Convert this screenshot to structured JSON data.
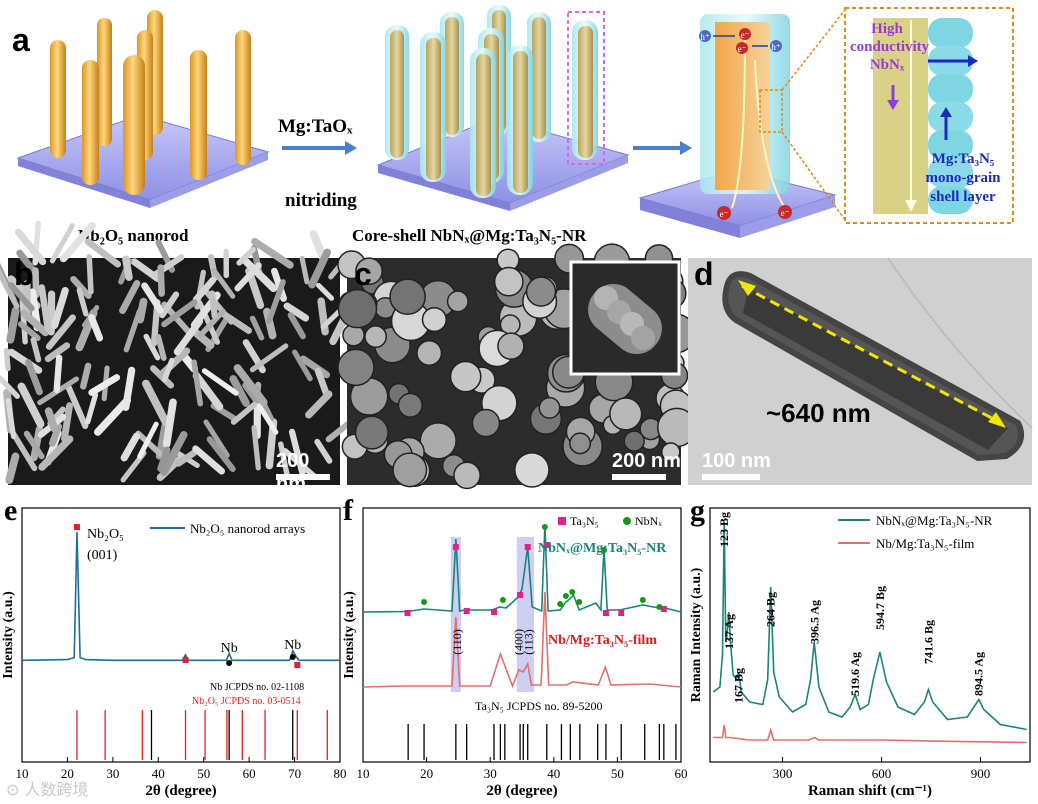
{
  "panel_a": {
    "label": "a",
    "step1_caption": "Nb₂O₅ nanorod",
    "reagent": "Mg:TaOₓ",
    "process": "nitriding",
    "step2_caption": "Core-shell NbNₓ@Mg:Ta₃N₅-NR",
    "zoom_core": "High conductivity NbNₓ",
    "zoom_shell": "Mg:Ta₃N₅ mono-grain shell layer",
    "hole": "h⁺",
    "electron": "e⁻"
  },
  "panel_b": {
    "label": "b",
    "scale": "200 nm"
  },
  "panel_c": {
    "label": "c",
    "scale": "200 nm"
  },
  "panel_d": {
    "label": "d",
    "scale": "100 nm",
    "length": "~640 nm"
  },
  "chart_data": [
    {
      "panel": "e",
      "type": "line",
      "xlabel": "2θ (degree)",
      "ylabel": "Intensity (a.u.)",
      "xlim": [
        10,
        80
      ],
      "xticks": [
        "10",
        "20",
        "30",
        "40",
        "50",
        "60",
        "70",
        "80"
      ],
      "series": [
        {
          "name": "Nb₂O₅ nanorod arrays",
          "color": "#1f6e98",
          "x": [
            10,
            20,
            21.5,
            22.1,
            22.8,
            24,
            30,
            40,
            45.3,
            46,
            46.6,
            50,
            55,
            55.6,
            56.2,
            60,
            68.9,
            69.6,
            70.3,
            71,
            80
          ],
          "y": [
            0.05,
            0.055,
            0.07,
            1.0,
            0.07,
            0.055,
            0.05,
            0.05,
            0.05,
            0.09,
            0.05,
            0.05,
            0.05,
            0.1,
            0.05,
            0.05,
            0.05,
            0.12,
            0.08,
            0.05,
            0.05
          ]
        }
      ],
      "annotations": [
        "Nb₂O₅",
        "(001)",
        "Nb",
        "Nb"
      ],
      "reference_labels": [
        "Nb JCPDS no. 02-1108",
        "Nb₂O₅ JCPDS no. 03-0514"
      ],
      "ref_nb": [
        38.5,
        55.6,
        69.6
      ],
      "ref_nb2o5": [
        22.1,
        28.3,
        36.5,
        46,
        50.3,
        55.1,
        58.5,
        63.5,
        70.6,
        77.2
      ]
    },
    {
      "panel": "f",
      "type": "line",
      "xlabel": "2θ (degree)",
      "ylabel": "Intensity (a.u.)",
      "xlim": [
        10,
        60
      ],
      "xticks": [
        "10",
        "20",
        "30",
        "40",
        "50",
        "60"
      ],
      "legend": [
        "Ta₃N₅",
        "NbNₓ"
      ],
      "series": [
        {
          "name": "NbNₓ@Mg:Ta₃N₅-NR",
          "color": "#1a8479",
          "x": [
            10,
            17,
            19.6,
            24,
            24.6,
            25.2,
            26,
            30.3,
            31.5,
            32.5,
            34.4,
            35,
            35.9,
            36.6,
            38.1,
            38.6,
            39.1,
            41,
            41.9,
            42.5,
            43.1,
            44,
            46.6,
            47.4,
            47.9,
            48.4,
            50.4,
            54,
            56.5,
            57.5,
            60
          ],
          "y": [
            0.05,
            0.055,
            0.08,
            0.06,
            0.78,
            0.06,
            0.07,
            0.07,
            0.1,
            0.09,
            0.2,
            0.28,
            0.7,
            0.1,
            0.06,
            0.92,
            0.06,
            0.07,
            0.15,
            0.18,
            0.22,
            0.07,
            0.14,
            0.07,
            0.68,
            0.07,
            0.07,
            0.12,
            0.09,
            0.09,
            0.05
          ]
        },
        {
          "name": "Nb/Mg:Ta₃N₅-film",
          "color": "#e07070",
          "x": [
            10,
            17,
            20,
            24,
            24.6,
            25.2,
            30,
            31.6,
            32.2,
            33.5,
            34.5,
            35.2,
            35.9,
            36.5,
            38,
            38.6,
            39.2,
            42,
            43,
            47,
            48.1,
            49,
            55,
            60
          ],
          "y": [
            0.05,
            0.06,
            0.06,
            0.06,
            0.75,
            0.06,
            0.06,
            0.38,
            0.28,
            0.06,
            0.22,
            0.2,
            0.28,
            0.07,
            0.07,
            1.0,
            0.07,
            0.07,
            0.1,
            0.07,
            0.25,
            0.07,
            0.08,
            0.05
          ]
        }
      ],
      "highlight_labels": [
        "(110)",
        "(400)",
        "(113)"
      ],
      "reference_label": "Ta₃N₅ JCPDS no. 89-5200",
      "ref_ta3n5": [
        17.1,
        19.6,
        24.6,
        26.3,
        30.6,
        31.6,
        32.3,
        34.7,
        35.2,
        35.9,
        38.9,
        41.2,
        42.6,
        44.1,
        46.9,
        48.2,
        50.6,
        54.3,
        56.6,
        57.3,
        59.2
      ]
    },
    {
      "panel": "g",
      "type": "line",
      "xlabel": "Raman shift (cm⁻¹)",
      "ylabel": "Raman Intensity (a.u.)",
      "xlim": [
        80,
        1050
      ],
      "xticks": [
        "300",
        "600",
        "900"
      ],
      "series": [
        {
          "name": "NbNₓ@Mg:Ta₃N₅-NR",
          "color": "#1a8479",
          "x": [
            90,
            110,
            118,
            123,
            128,
            133,
            137,
            142,
            150,
            160,
            167,
            175,
            200,
            240,
            255,
            264,
            273,
            290,
            330,
            370,
            385,
            396,
            410,
            440,
            480,
            505,
            520,
            535,
            560,
            575,
            595,
            615,
            650,
            700,
            730,
            742,
            755,
            800,
            860,
            880,
            895,
            910,
            960,
            1000,
            1040
          ],
          "y": [
            0.3,
            0.32,
            0.45,
            0.98,
            0.5,
            0.55,
            0.62,
            0.5,
            0.37,
            0.35,
            0.38,
            0.3,
            0.26,
            0.25,
            0.35,
            0.72,
            0.38,
            0.28,
            0.22,
            0.25,
            0.35,
            0.5,
            0.32,
            0.22,
            0.2,
            0.24,
            0.29,
            0.23,
            0.25,
            0.35,
            0.46,
            0.34,
            0.24,
            0.21,
            0.26,
            0.31,
            0.26,
            0.19,
            0.2,
            0.24,
            0.27,
            0.23,
            0.17,
            0.16,
            0.15
          ]
        },
        {
          "name": "Nb/Mg:Ta₃N₅-film",
          "color": "#e07070",
          "x": [
            90,
            118,
            123,
            128,
            140,
            200,
            255,
            264,
            273,
            380,
            396,
            410,
            600,
            800,
            1040
          ],
          "y": [
            0.05,
            0.05,
            0.1,
            0.05,
            0.05,
            0.04,
            0.04,
            0.08,
            0.04,
            0.04,
            0.05,
            0.04,
            0.04,
            0.035,
            0.03
          ]
        }
      ],
      "annotations": [
        "123 Bg",
        "137 Ag",
        "167 Bg",
        "264 Bg",
        "396.5 Ag",
        "519.6 Ag",
        "594.7 Bg",
        "741.6 Bg",
        "894.5 Ag"
      ]
    }
  ],
  "watermark": "⊙ 人数跨境"
}
